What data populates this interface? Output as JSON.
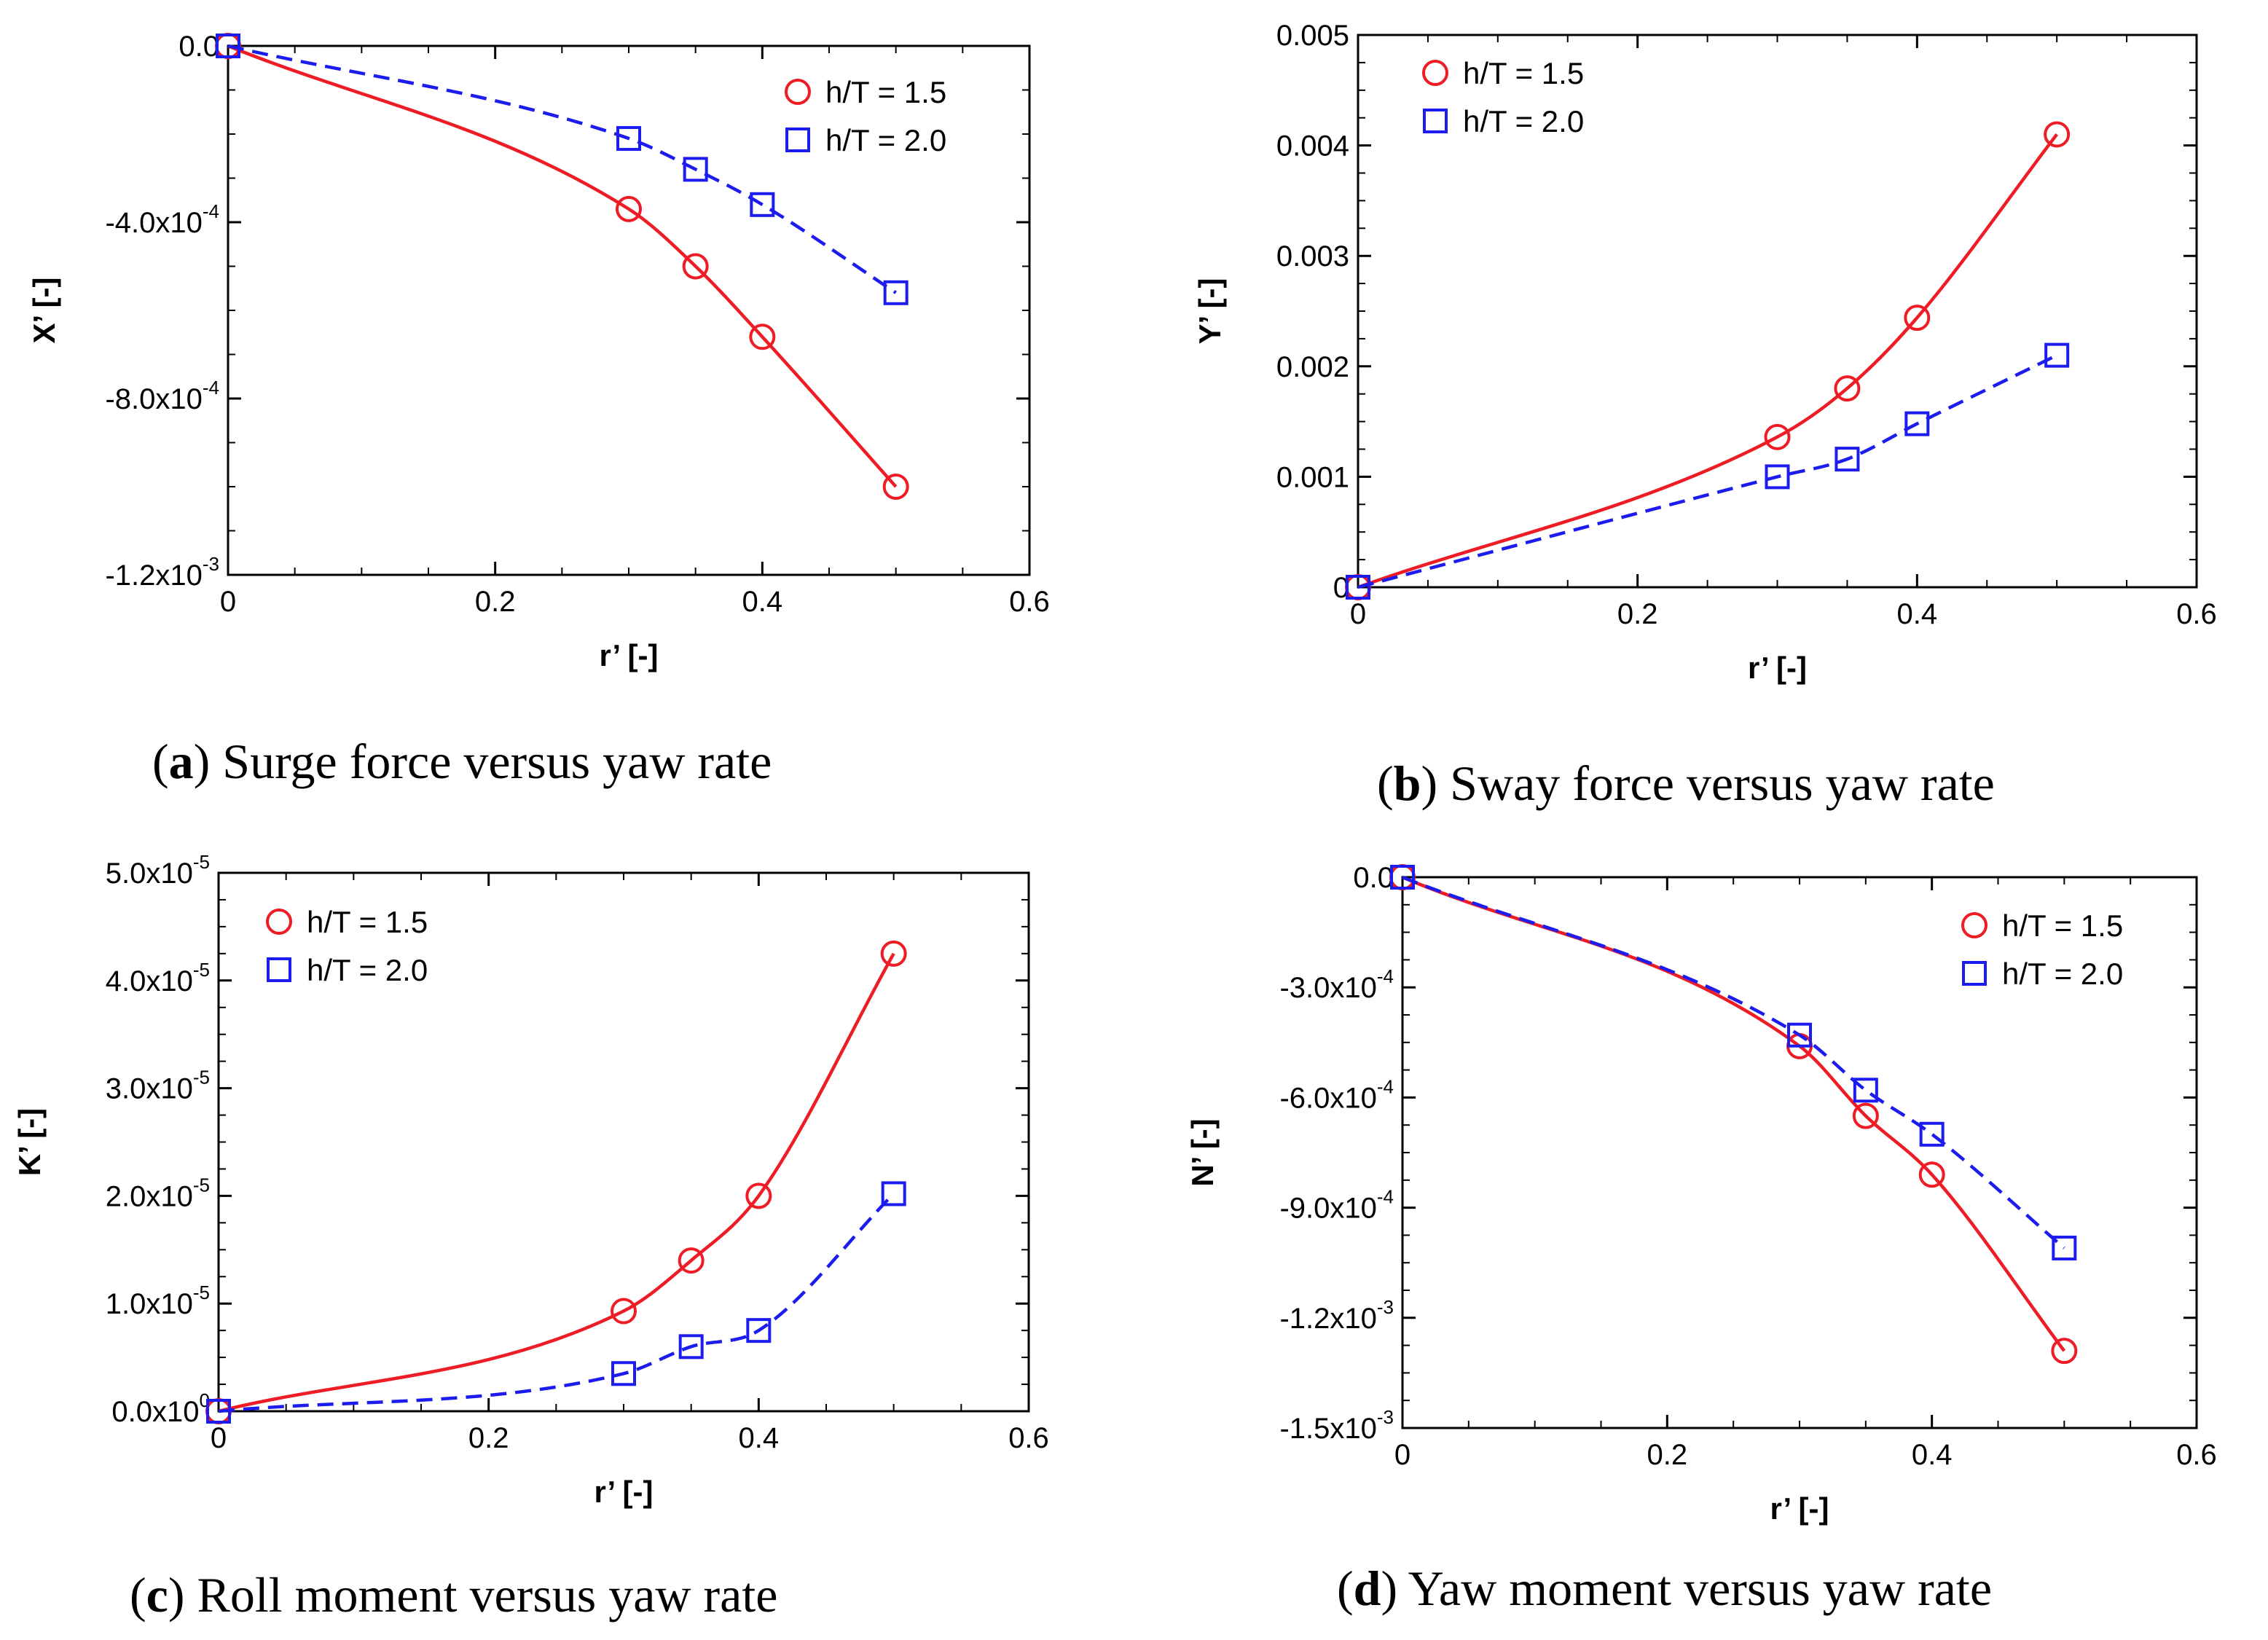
{
  "colors": {
    "series_1": "#ee1c25",
    "series_2": "#1c1cee",
    "axis": "#000000"
  },
  "chart_data": [
    {
      "id": "a",
      "type": "line",
      "caption_letter": "a",
      "caption_text": "Surge force versus yaw rate",
      "xlabel": "r’ [-]",
      "ylabel": "X’ [-]",
      "xlim": [
        0,
        0.6
      ],
      "ylim": [
        -0.0012,
        0
      ],
      "xticks": [
        {
          "v": 0,
          "label": "0"
        },
        {
          "v": 0.2,
          "label": "0.2"
        },
        {
          "v": 0.4,
          "label": "0.4"
        },
        {
          "v": 0.6,
          "label": "0.6"
        }
      ],
      "yticks": [
        {
          "v": 0,
          "label": "0.0",
          "exp": ""
        },
        {
          "v": -0.0004,
          "label": "-4.0x10",
          "exp": "-4"
        },
        {
          "v": -0.0008,
          "label": "-8.0x10",
          "exp": "-4"
        },
        {
          "v": -0.0012,
          "label": "-1.2x10",
          "exp": "-3"
        }
      ],
      "legend_position": "top-right",
      "series": [
        {
          "name": "h/T = 1.5",
          "marker": "circle",
          "line": "solid",
          "x": [
            0,
            0.3,
            0.35,
            0.4,
            0.5
          ],
          "y": [
            0,
            -0.00037,
            -0.0005,
            -0.00066,
            -0.001
          ]
        },
        {
          "name": "h/T = 2.0",
          "marker": "square",
          "line": "dashed",
          "x": [
            0,
            0.3,
            0.35,
            0.4,
            0.5
          ],
          "y": [
            0,
            -0.00021,
            -0.00028,
            -0.00036,
            -0.00056
          ]
        }
      ]
    },
    {
      "id": "b",
      "type": "line",
      "caption_letter": "b",
      "caption_text": "Sway force versus yaw rate",
      "xlabel": "r’ [-]",
      "ylabel": "Y’ [-]",
      "xlim": [
        0,
        0.6
      ],
      "ylim": [
        0,
        0.005
      ],
      "xticks": [
        {
          "v": 0,
          "label": "0"
        },
        {
          "v": 0.2,
          "label": "0.2"
        },
        {
          "v": 0.4,
          "label": "0.4"
        },
        {
          "v": 0.6,
          "label": "0.6"
        }
      ],
      "yticks": [
        {
          "v": 0,
          "label": "0",
          "exp": ""
        },
        {
          "v": 0.001,
          "label": "0.001",
          "exp": ""
        },
        {
          "v": 0.002,
          "label": "0.002",
          "exp": ""
        },
        {
          "v": 0.003,
          "label": "0.003",
          "exp": ""
        },
        {
          "v": 0.004,
          "label": "0.004",
          "exp": ""
        },
        {
          "v": 0.005,
          "label": "0.005",
          "exp": ""
        }
      ],
      "legend_position": "top-left",
      "series": [
        {
          "name": "h/T = 1.5",
          "marker": "circle",
          "line": "solid",
          "x": [
            0,
            0.3,
            0.35,
            0.4,
            0.5
          ],
          "y": [
            0,
            0.00136,
            0.0018,
            0.00244,
            0.0041
          ]
        },
        {
          "name": "h/T = 2.0",
          "marker": "square",
          "line": "dashed",
          "x": [
            0,
            0.3,
            0.35,
            0.4,
            0.5
          ],
          "y": [
            0,
            0.001,
            0.00116,
            0.00148,
            0.0021
          ]
        }
      ]
    },
    {
      "id": "c",
      "type": "line",
      "caption_letter": "c",
      "caption_text": "Roll moment versus yaw rate",
      "xlabel": "r’ [-]",
      "ylabel": "K’ [-]",
      "xlim": [
        0,
        0.6
      ],
      "ylim": [
        0,
        5e-05
      ],
      "xticks": [
        {
          "v": 0,
          "label": "0"
        },
        {
          "v": 0.2,
          "label": "0.2"
        },
        {
          "v": 0.4,
          "label": "0.4"
        },
        {
          "v": 0.6,
          "label": "0.6"
        }
      ],
      "yticks": [
        {
          "v": 0,
          "label": "0.0x10",
          "exp": "0"
        },
        {
          "v": 1e-05,
          "label": "1.0x10",
          "exp": "-5"
        },
        {
          "v": 2e-05,
          "label": "2.0x10",
          "exp": "-5"
        },
        {
          "v": 3e-05,
          "label": "3.0x10",
          "exp": "-5"
        },
        {
          "v": 4e-05,
          "label": "4.0x10",
          "exp": "-5"
        },
        {
          "v": 5e-05,
          "label": "5.0x10",
          "exp": "-5"
        }
      ],
      "legend_position": "top-left",
      "series": [
        {
          "name": "h/T = 1.5",
          "marker": "circle",
          "line": "solid",
          "x": [
            0,
            0.3,
            0.35,
            0.4,
            0.5
          ],
          "y": [
            0,
            9.3e-06,
            1.4e-05,
            2e-05,
            4.25e-05
          ]
        },
        {
          "name": "h/T = 2.0",
          "marker": "square",
          "line": "dashed",
          "x": [
            0,
            0.3,
            0.35,
            0.4,
            0.5
          ],
          "y": [
            0,
            3.5e-06,
            6e-06,
            7.5e-06,
            2.02e-05
          ]
        }
      ]
    },
    {
      "id": "d",
      "type": "line",
      "caption_letter": "d",
      "caption_text": "Yaw moment versus yaw rate",
      "xlabel": "r’ [-]",
      "ylabel": "N’ [-]",
      "xlim": [
        0,
        0.6
      ],
      "ylim": [
        -0.0015,
        0
      ],
      "xticks": [
        {
          "v": 0,
          "label": "0"
        },
        {
          "v": 0.2,
          "label": "0.2"
        },
        {
          "v": 0.4,
          "label": "0.4"
        },
        {
          "v": 0.6,
          "label": "0.6"
        }
      ],
      "yticks": [
        {
          "v": 0,
          "label": "0.0",
          "exp": ""
        },
        {
          "v": -0.0003,
          "label": "-3.0x10",
          "exp": "-4"
        },
        {
          "v": -0.0006,
          "label": "-6.0x10",
          "exp": "-4"
        },
        {
          "v": -0.0009,
          "label": "-9.0x10",
          "exp": "-4"
        },
        {
          "v": -0.0012,
          "label": "-1.2x10",
          "exp": "-3"
        },
        {
          "v": -0.0015,
          "label": "-1.5x10",
          "exp": "-3"
        }
      ],
      "legend_position": "top-right",
      "series": [
        {
          "name": "h/T = 1.5",
          "marker": "circle",
          "line": "solid",
          "x": [
            0,
            0.3,
            0.35,
            0.4,
            0.5
          ],
          "y": [
            0,
            -0.00046,
            -0.00065,
            -0.00081,
            -0.00129
          ]
        },
        {
          "name": "h/T = 2.0",
          "marker": "square",
          "line": "dashed",
          "x": [
            0,
            0.3,
            0.35,
            0.4,
            0.5
          ],
          "y": [
            0,
            -0.00043,
            -0.00058,
            -0.0007,
            -0.00101
          ]
        }
      ]
    }
  ]
}
